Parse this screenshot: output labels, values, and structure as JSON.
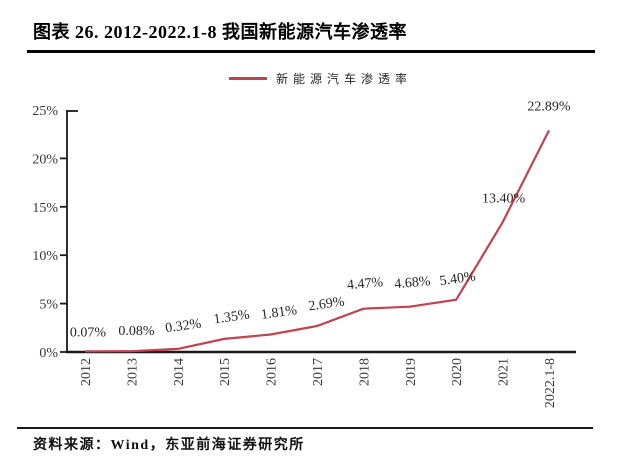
{
  "title": "图表 26. 2012-2022.1-8 我国新能源汽车渗透率",
  "source": "资料来源：Wind，东亚前海证券研究所",
  "colors": {
    "line": "#c2424f",
    "axis": "#1a1a1a",
    "tick_text": "#383838",
    "label_text": "#262626",
    "rule": "#000000"
  },
  "chart_data": {
    "type": "line",
    "title": "",
    "legend": "新能源汽车渗透率",
    "legend_position": "top-center",
    "categories": [
      "2012",
      "2013",
      "2014",
      "2015",
      "2016",
      "2017",
      "2018",
      "2019",
      "2020",
      "2021",
      "2022.1-8"
    ],
    "series": [
      {
        "name": "新能源汽车渗透率",
        "values": [
          0.07,
          0.08,
          0.32,
          1.35,
          1.81,
          2.69,
          4.47,
          4.68,
          5.4,
          13.4,
          22.89
        ]
      }
    ],
    "point_labels": [
      "0.07%",
      "0.08%",
      "0.32%",
      "1.35%",
      "1.81%",
      "2.69%",
      "4.47%",
      "4.68%",
      "5.40%",
      "13.40%",
      "22.89%"
    ],
    "xlabel": "",
    "ylabel": "",
    "ylim": [
      0,
      25
    ],
    "yticks": [
      "0%",
      "5%",
      "10%",
      "15%",
      "20%",
      "25%"
    ],
    "grid": false
  }
}
